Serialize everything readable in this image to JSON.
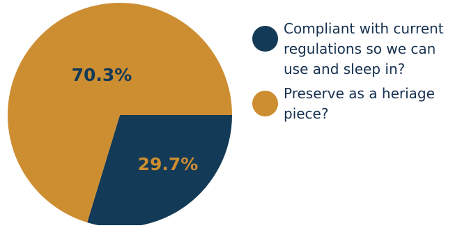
{
  "chart_data": {
    "type": "pie",
    "title": "",
    "slices": [
      {
        "label": "Compliant with current regulations so we can use and sleep in?",
        "value": 29.7,
        "value_label": "29.7%",
        "color": "#133a57",
        "label_color": "#cd8d31"
      },
      {
        "label": "Preserve as a heriage piece?",
        "value": 70.3,
        "value_label": "70.3%",
        "color": "#cd8d31",
        "label_color": "#133a57"
      }
    ],
    "start_angle_deg": 0,
    "direction": "clockwise",
    "legend_position": "right"
  }
}
